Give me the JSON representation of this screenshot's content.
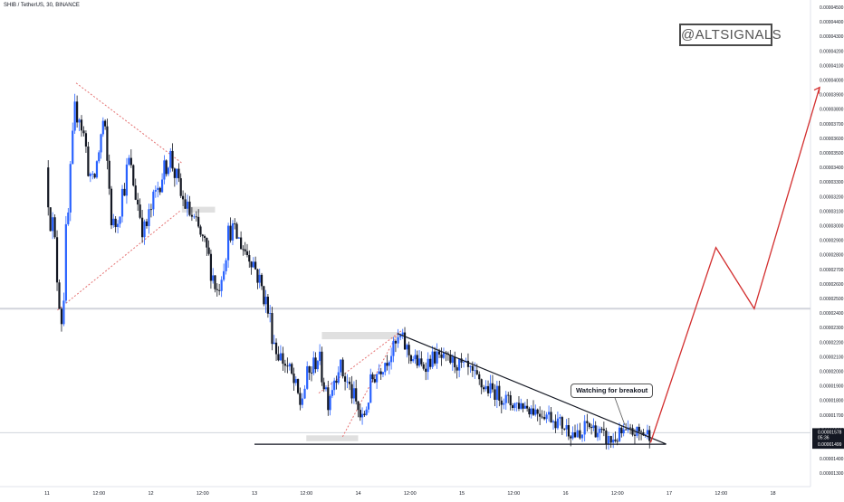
{
  "header": {
    "symbol": "SHIB / TetherUS, 30, BINANCE"
  },
  "watermark": {
    "text": "@ALTSIGNALS"
  },
  "annotation": {
    "text": "Watching for breakout"
  },
  "colors": {
    "up": "#2962ff",
    "down": "#131722",
    "projection": "#d32f2f",
    "dotted": "#e57373",
    "zone": "#e0e0e0",
    "support": "#131722",
    "resistance": "#d1d4dc"
  },
  "chart_data": {
    "type": "candlestick",
    "title": "SHIB / TetherUS, 30, BINANCE",
    "x_ticks": [
      "11",
      "12:00",
      "12",
      "12:00",
      "13",
      "12:00",
      "14",
      "12:00",
      "15",
      "12:00",
      "16",
      "12:00",
      "17",
      "12:00",
      "18"
    ],
    "y_ticks": [
      "0.00004500",
      "0.00004400",
      "0.00004300",
      "0.00004200",
      "0.00004100",
      "0.00004000",
      "0.00003900",
      "0.00003800",
      "0.00003700",
      "0.00003600",
      "0.00003500",
      "0.00003400",
      "0.00003300",
      "0.00003200",
      "0.00003100",
      "0.00003000",
      "0.00002900",
      "0.00002800",
      "0.00002700",
      "0.00002600",
      "0.00002500",
      "0.00002400",
      "0.00002300",
      "0.00002200",
      "0.00002100",
      "0.00002000",
      "0.00001900",
      "0.00001800",
      "0.00001700",
      "0.00001600",
      "0.00001500",
      "0.00001400",
      "0.00001300"
    ],
    "y_range": [
      1.27e-05,
      4.55e-05
    ],
    "x_range": [
      0,
      7.55
    ],
    "current_price": {
      "value": "0.00001578",
      "countdown": "05:36"
    },
    "support_price": {
      "value": "0.00001499",
      "y": 1.499e-05
    },
    "resistance_level": 2.43e-05,
    "close_path": [
      [
        0.0,
        3.4e-05
      ],
      [
        0.15,
        2.4e-05
      ],
      [
        0.3,
        3.88e-05
      ],
      [
        0.45,
        3.25e-05
      ],
      [
        0.55,
        3.7e-05
      ],
      [
        0.65,
        2.95e-05
      ],
      [
        0.8,
        3.43e-05
      ],
      [
        0.95,
        2.95e-05
      ],
      [
        1.1,
        3.32e-05
      ],
      [
        1.2,
        3.48e-05
      ],
      [
        1.3,
        3.2e-05
      ],
      [
        1.45,
        3e-05
      ],
      [
        1.55,
        2.82e-05
      ],
      [
        1.65,
        2.55e-05
      ],
      [
        1.78,
        3e-05
      ],
      [
        1.9,
        2.85e-05
      ],
      [
        2.0,
        2.75e-05
      ],
      [
        2.12,
        2.48e-05
      ],
      [
        2.22,
        2.15e-05
      ],
      [
        2.35,
        2e-05
      ],
      [
        2.45,
        1.78e-05
      ],
      [
        2.52,
        1.95e-05
      ],
      [
        2.62,
        2.1e-05
      ],
      [
        2.72,
        1.82e-05
      ],
      [
        2.82,
        2.05e-05
      ],
      [
        2.95,
        1.85e-05
      ],
      [
        3.05,
        1.65e-05
      ],
      [
        3.15,
        1.95e-05
      ],
      [
        3.25,
        2.05e-05
      ],
      [
        3.35,
        2.15e-05
      ],
      [
        3.42,
        2.23e-05
      ],
      [
        3.5,
        2.12e-05
      ],
      [
        3.62,
        2.03e-05
      ],
      [
        3.75,
        2.1e-05
      ],
      [
        3.9,
        2.07e-05
      ],
      [
        4.05,
        2.02e-05
      ],
      [
        4.2,
        1.9e-05
      ],
      [
        4.35,
        1.85e-05
      ],
      [
        4.48,
        1.78e-05
      ],
      [
        4.6,
        1.77e-05
      ],
      [
        4.72,
        1.73e-05
      ],
      [
        4.85,
        1.7e-05
      ],
      [
        5.0,
        1.62e-05
      ],
      [
        5.08,
        1.58e-05
      ],
      [
        5.15,
        1.53e-05
      ],
      [
        5.22,
        1.63e-05
      ],
      [
        5.3,
        1.6e-05
      ],
      [
        5.38,
        1.54e-05
      ],
      [
        5.45,
        1.52e-05
      ],
      [
        5.55,
        1.57e-05
      ],
      [
        5.7,
        1.58e-05
      ],
      [
        5.82,
        1.57e-05
      ]
    ],
    "breakout_projection": [
      [
        5.82,
        1.51e-05
      ],
      [
        6.45,
        2.85e-05
      ],
      [
        6.82,
        2.43e-05
      ],
      [
        7.45,
        3.95e-05
      ]
    ],
    "trendlines": [
      {
        "name": "descending",
        "from": [
          3.38,
          2.26e-05
        ],
        "to": [
          5.97,
          1.5e-05
        ],
        "style": "solid"
      },
      {
        "name": "support",
        "from": [
          2.0,
          1.499e-05
        ],
        "to": [
          5.97,
          1.499e-05
        ],
        "style": "solid"
      }
    ],
    "dotted_lines": [
      [
        [
          0.28,
          3.98e-05
        ],
        [
          1.3,
          3.43e-05
        ]
      ],
      [
        [
          0.1,
          2.42e-05
        ],
        [
          1.28,
          3.1e-05
        ]
      ],
      [
        [
          2.85,
          1.55e-05
        ],
        [
          3.38,
          2.26e-05
        ]
      ],
      [
        [
          2.62,
          1.85e-05
        ],
        [
          3.42,
          2.28e-05
        ]
      ]
    ],
    "zones": [
      {
        "x": [
          1.3,
          1.62
        ],
        "y": [
          3.09e-05,
          3.13e-05
        ]
      },
      {
        "x": [
          2.65,
          3.4
        ],
        "y": [
          2.22e-05,
          2.27e-05
        ]
      },
      {
        "x": [
          2.5,
          3.0
        ],
        "y": [
          1.52e-05,
          1.56e-05
        ]
      }
    ]
  }
}
